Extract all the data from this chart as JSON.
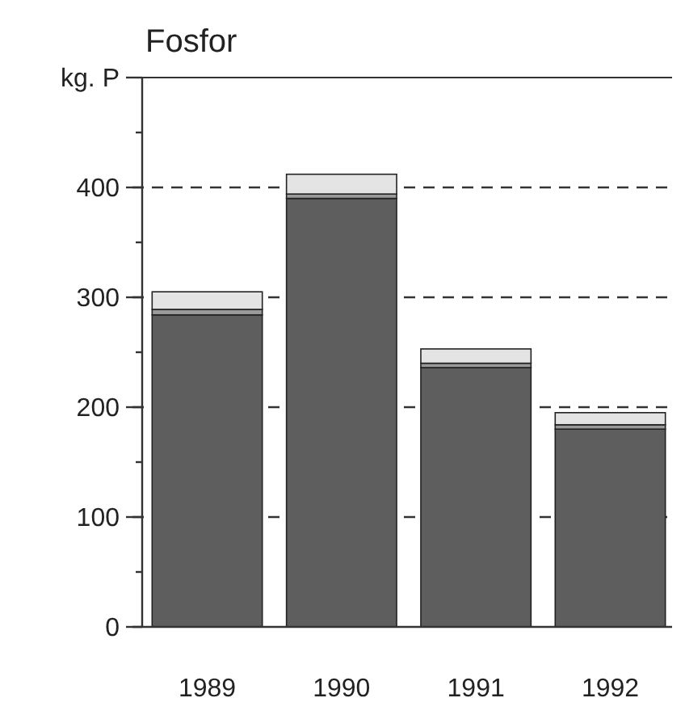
{
  "chart_data": {
    "type": "bar",
    "title": "Fosfor",
    "categories": [
      "1989",
      "1990",
      "1991",
      "1992"
    ],
    "stacked": true,
    "series": [
      {
        "color": "#5e5e5e",
        "values": [
          284,
          390,
          236,
          180
        ]
      },
      {
        "color": "#9a9a9a",
        "values": [
          5,
          4,
          4,
          4
        ]
      },
      {
        "color": "#e4e4e4",
        "values": [
          16,
          18,
          13,
          11
        ]
      }
    ],
    "ylim": [
      0,
      500
    ],
    "yticks": [
      0,
      {
        "value": 50,
        "label": null
      },
      100,
      {
        "value": 150,
        "label": null
      },
      200,
      {
        "value": 250,
        "label": null
      },
      300,
      {
        "value": 350,
        "label": null
      },
      400,
      {
        "value": 450,
        "label": null
      },
      {
        "value": 500,
        "label": "kg. P"
      }
    ],
    "grid": "y"
  }
}
